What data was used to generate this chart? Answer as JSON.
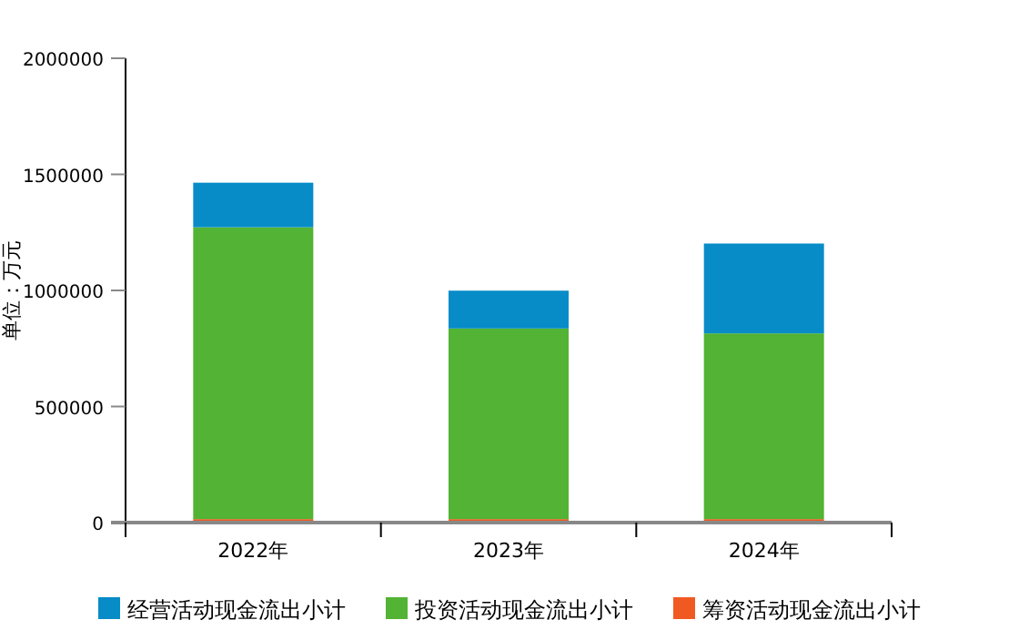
{
  "chart_data": {
    "type": "bar",
    "stacked": true,
    "ylabel": "单位：万元",
    "categories": [
      "2022年",
      "2023年",
      "2024年"
    ],
    "series": [
      {
        "name": "筹资活动现金流出小计",
        "color": "#f05a22",
        "values": [
          15000,
          15000,
          15000
        ]
      },
      {
        "name": "投资活动现金流出小计",
        "color": "#52b334",
        "values": [
          1257000,
          821000,
          800000
        ]
      },
      {
        "name": "经营活动现金流出小计",
        "color": "#078cc8",
        "values": [
          192000,
          163000,
          387000
        ]
      }
    ],
    "ylim": [
      0,
      2000000
    ],
    "yticks": [
      0,
      500000,
      1000000,
      1500000,
      2000000
    ],
    "legend": "bottom",
    "grid": false
  }
}
